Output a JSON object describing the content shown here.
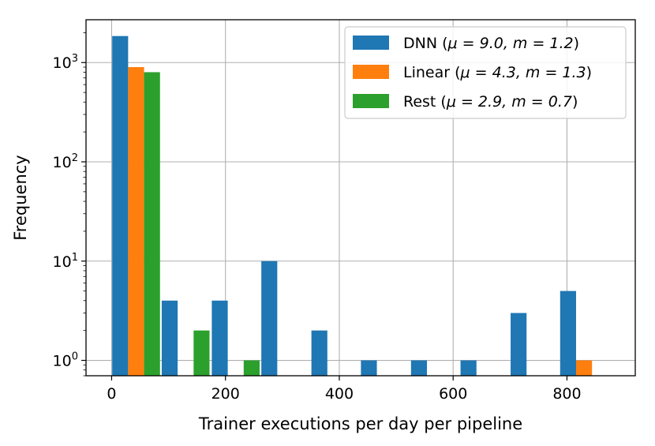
{
  "chart_data": {
    "type": "bar",
    "title": "",
    "xlabel": "Trainer executions per day per pipeline",
    "ylabel": "Frequency",
    "xscale": "linear",
    "yscale": "log",
    "xlim": [
      -45,
      920
    ],
    "ylim": [
      0.7,
      2700
    ],
    "x_ticks": [
      0,
      200,
      400,
      600,
      800
    ],
    "x_tick_labels": [
      "0",
      "200",
      "400",
      "600",
      "800"
    ],
    "y_ticks": [
      1,
      10,
      100,
      1000
    ],
    "y_tick_labels": [
      {
        "base": "10",
        "exp": "0"
      },
      {
        "base": "10",
        "exp": "1"
      },
      {
        "base": "10",
        "exp": "2"
      },
      {
        "base": "10",
        "exp": "3"
      }
    ],
    "grid": true,
    "legend_position": "top-right",
    "bar_width": 28,
    "series": [
      {
        "name": "DNN",
        "legend_main": "DNN (",
        "legend_math": "μ = 9.0, m = 1.2",
        "legend_close": ")",
        "color": "#1f77b4",
        "bins": [
          {
            "x": 15,
            "value": 1850
          },
          {
            "x": 102,
            "value": 4
          },
          {
            "x": 190,
            "value": 4
          },
          {
            "x": 277,
            "value": 10
          },
          {
            "x": 365,
            "value": 2
          },
          {
            "x": 452,
            "value": 1
          },
          {
            "x": 540,
            "value": 1
          },
          {
            "x": 627,
            "value": 1
          },
          {
            "x": 715,
            "value": 3
          },
          {
            "x": 802,
            "value": 5
          }
        ]
      },
      {
        "name": "Linear",
        "legend_main": "Linear (",
        "legend_math": "μ = 4.3, m = 1.3",
        "legend_close": ")",
        "color": "#ff7f0e",
        "bins": [
          {
            "x": 43,
            "value": 900
          },
          {
            "x": 830,
            "value": 1
          }
        ]
      },
      {
        "name": "Rest",
        "legend_main": "Rest (",
        "legend_math": "μ = 2.9, m = 0.7",
        "legend_close": ")",
        "color": "#2ca02c",
        "bins": [
          {
            "x": 71,
            "value": 800
          },
          {
            "x": 158,
            "value": 2
          },
          {
            "x": 246,
            "value": 1
          }
        ]
      }
    ]
  }
}
